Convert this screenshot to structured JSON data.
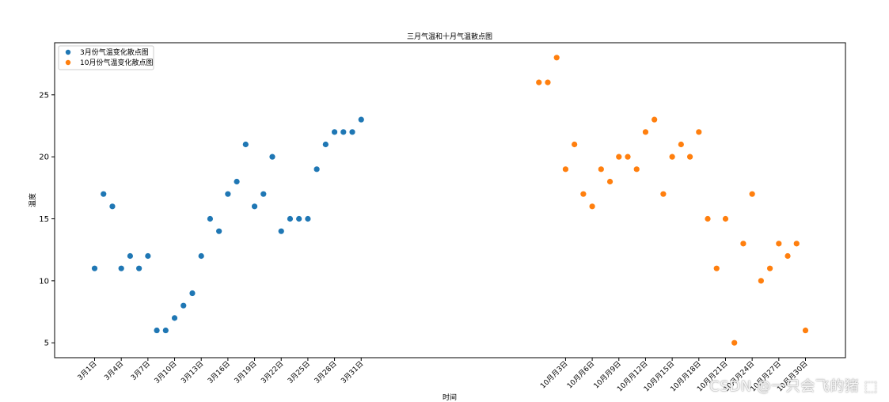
{
  "chart_data": {
    "type": "scatter",
    "title": "三月气温和十月气温散点图",
    "xlabel": "时间",
    "ylabel": "温度",
    "ylim": [
      3.8,
      29.2
    ],
    "yticks": [
      5,
      10,
      15,
      20,
      25
    ],
    "grid": false,
    "legend_position": "top-left",
    "series": [
      {
        "name": "3月份气温变化散点图",
        "color": "#1f77b4",
        "x": [
          1,
          2,
          3,
          4,
          5,
          6,
          7,
          8,
          9,
          10,
          11,
          12,
          13,
          14,
          15,
          16,
          17,
          18,
          19,
          20,
          21,
          22,
          23,
          24,
          25,
          26,
          27,
          28,
          29,
          30,
          31
        ],
        "y": [
          11,
          17,
          16,
          11,
          12,
          11,
          12,
          6,
          6,
          7,
          8,
          9,
          12,
          15,
          14,
          17,
          18,
          21,
          16,
          17,
          20,
          14,
          15,
          15,
          15,
          19,
          21,
          22,
          22,
          22,
          23
        ]
      },
      {
        "name": "10月份气温变化散点图",
        "color": "#ff7f0e",
        "x": [
          51,
          52,
          53,
          54,
          55,
          56,
          57,
          58,
          59,
          60,
          61,
          62,
          63,
          64,
          65,
          66,
          67,
          68,
          69,
          70,
          71,
          72,
          73,
          74,
          75,
          76,
          77,
          78,
          79,
          80,
          81
        ],
        "y": [
          26,
          26,
          28,
          19,
          21,
          17,
          16,
          19,
          18,
          20,
          20,
          19,
          22,
          23,
          17,
          20,
          21,
          20,
          22,
          15,
          11,
          15,
          5,
          13,
          17,
          10,
          11,
          13,
          12,
          13,
          6
        ]
      }
    ],
    "xticks": [
      {
        "x": 1,
        "label": "3月1日"
      },
      {
        "x": 4,
        "label": "3月4日"
      },
      {
        "x": 7,
        "label": "3月7日"
      },
      {
        "x": 10,
        "label": "3月10日"
      },
      {
        "x": 13,
        "label": "3月13日"
      },
      {
        "x": 16,
        "label": "3月16日"
      },
      {
        "x": 19,
        "label": "3月19日"
      },
      {
        "x": 22,
        "label": "3月22日"
      },
      {
        "x": 25,
        "label": "3月25日"
      },
      {
        "x": 28,
        "label": "3月28日"
      },
      {
        "x": 31,
        "label": "3月31日"
      },
      {
        "x": 54,
        "label": "10月月3日"
      },
      {
        "x": 57,
        "label": "10月月6日"
      },
      {
        "x": 60,
        "label": "10月月9日"
      },
      {
        "x": 63,
        "label": "10月月12日"
      },
      {
        "x": 66,
        "label": "10月月15日"
      },
      {
        "x": 69,
        "label": "10月月18日"
      },
      {
        "x": 72,
        "label": "10月月21日"
      },
      {
        "x": 75,
        "label": "10月月24日"
      },
      {
        "x": 78,
        "label": "10月月27日"
      },
      {
        "x": 81,
        "label": "10月月30日"
      }
    ]
  },
  "watermark": "CSDN @一只会飞的猪 ⬚"
}
